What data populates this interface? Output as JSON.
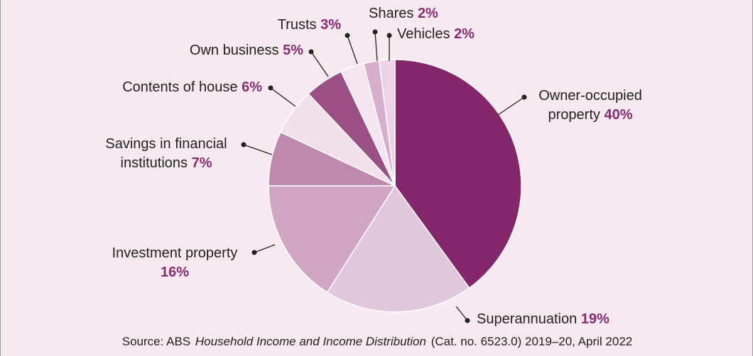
{
  "chart_data": {
    "type": "pie",
    "categories": [
      "Owner-occupied property",
      "Superannuation",
      "Investment property",
      "Savings in financial institutions",
      "Contents of house",
      "Own business",
      "Trusts",
      "Shares",
      "Vehicles"
    ],
    "values": [
      40,
      19,
      16,
      7,
      6,
      5,
      3,
      2,
      2
    ],
    "value_labels": [
      "40%",
      "19%",
      "16%",
      "7%",
      "6%",
      "5%",
      "3%",
      "2%",
      "2%"
    ],
    "colors": [
      "#85266b",
      "#e1c7dc",
      "#d0a6c4",
      "#bf88ae",
      "#f1dfe9",
      "#9b4f85",
      "#f4e4ed",
      "#d7afcc",
      "#ecd3e3"
    ],
    "source": {
      "prefix": "Source: ABS",
      "title": "Household Income and Income Distribution",
      "suffix": "(Cat. no. 6523.0) 2019–20, April 2022"
    }
  }
}
